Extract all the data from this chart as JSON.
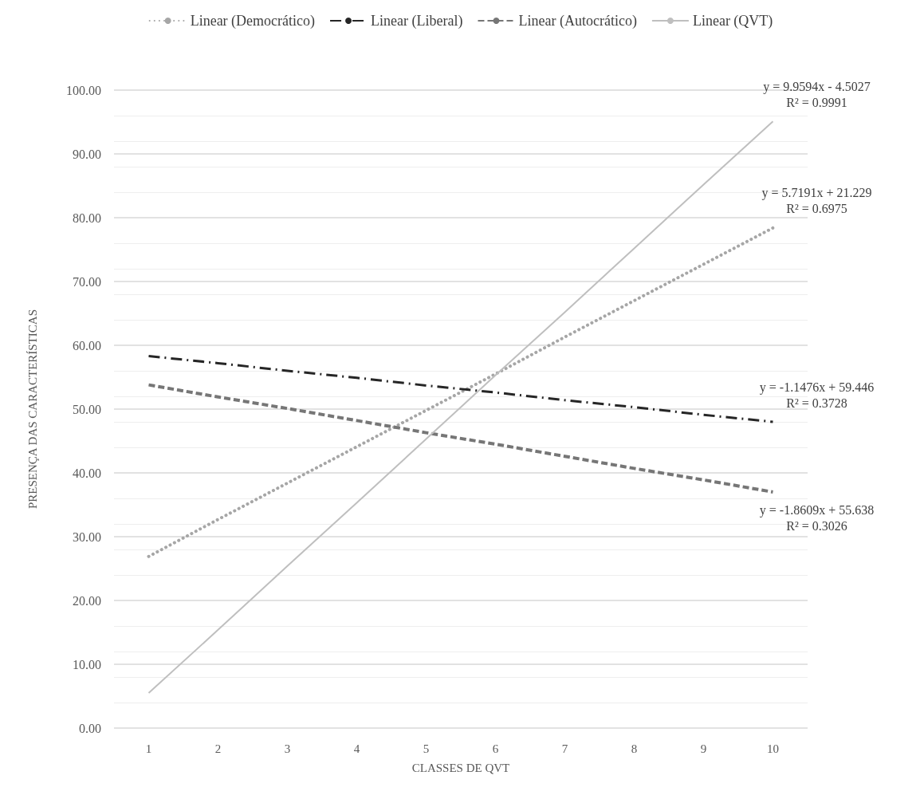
{
  "chart_data": {
    "type": "line",
    "xlabel": "CLASSES DE QVT",
    "ylabel": "PRESENÇA DAS CARACTERÍSTICAS",
    "categories": [
      "1",
      "2",
      "3",
      "4",
      "5",
      "6",
      "7",
      "8",
      "9",
      "10"
    ],
    "ylim": [
      0,
      100
    ],
    "yticks": [
      {
        "value": 0,
        "label": "0.00"
      },
      {
        "value": 10,
        "label": "10.00"
      },
      {
        "value": 20,
        "label": "20.00"
      },
      {
        "value": 30,
        "label": "30.00"
      },
      {
        "value": 40,
        "label": "40.00"
      },
      {
        "value": 50,
        "label": "50.00"
      },
      {
        "value": 60,
        "label": "60.00"
      },
      {
        "value": 70,
        "label": "70.00"
      },
      {
        "value": 80,
        "label": "80.00"
      },
      {
        "value": 90,
        "label": "90.00"
      },
      {
        "value": 100,
        "label": "100.00"
      }
    ],
    "grid": "y",
    "legend": "top",
    "marker": "none",
    "series": [
      {
        "name": "Linear (Democrático)",
        "color": "#a6a6a6",
        "line_style": "dotted",
        "values": [
          26.9,
          32.7,
          38.4,
          44.1,
          49.8,
          55.5,
          61.3,
          67.0,
          72.7,
          78.4
        ]
      },
      {
        "name": "Linear (Liberal)",
        "color": "#262626",
        "line_style": "dashdot",
        "values": [
          58.3,
          57.2,
          56.0,
          54.9,
          53.7,
          52.6,
          51.4,
          50.3,
          49.1,
          48.0
        ]
      },
      {
        "name": "Linear (Autocrático)",
        "color": "#767676",
        "line_style": "dashed",
        "values": [
          53.8,
          51.9,
          50.1,
          48.2,
          46.3,
          44.5,
          42.6,
          40.7,
          38.9,
          37.0
        ]
      },
      {
        "name": "Linear (QVT)",
        "color": "#bfbfbf",
        "line_style": "solid",
        "values": [
          5.5,
          15.4,
          25.4,
          35.3,
          45.3,
          55.3,
          65.2,
          75.2,
          85.2,
          95.1
        ]
      }
    ],
    "annotations": [
      {
        "text": "y = 9.9594x - 4.5027\nR² = 0.9991",
        "x": "10",
        "y": 95.1
      },
      {
        "text": "y = 5.7191x + 21.229\nR² = 0.6975",
        "x": "10",
        "y": 78.4
      },
      {
        "text": "y = -1.1476x + 59.446\nR² = 0.3728",
        "x": "10",
        "y": 48.0
      },
      {
        "text": "y = -1.8609x + 55.638\nR² = 0.3026",
        "x": "10",
        "y": 37.0
      }
    ]
  }
}
